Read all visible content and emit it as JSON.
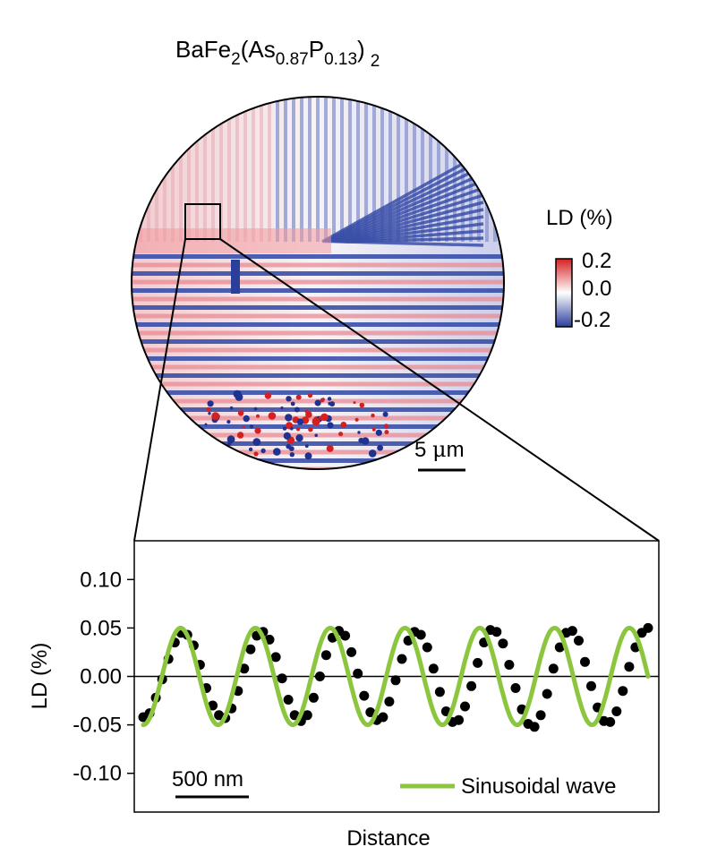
{
  "title": {
    "base": "BaFe",
    "sub1": "2",
    "open": "(As",
    "sub2": "0.87",
    "mid": "P",
    "sub3": "0.13",
    "close": ")",
    "sub4": "2"
  },
  "colorbar": {
    "label": "LD (%)",
    "ticks": [
      "0.2",
      "0.0",
      "-0.2"
    ],
    "colors": {
      "high": "#d62020",
      "mid": "#ffffff",
      "low": "#2a3f9c"
    }
  },
  "image_scalebar": {
    "prefix": "5 ",
    "mu": "μ",
    "unit": "m"
  },
  "chart_data": {
    "type": "scatter",
    "ylabel": "LD (%)",
    "xlabel": "Distance",
    "ylim": [
      -0.14,
      0.14
    ],
    "yticks": [
      "0.10",
      "0.05",
      "0.00",
      "-0.05",
      "-0.10"
    ],
    "ytick_values": [
      0.1,
      0.05,
      0.0,
      -0.05,
      -0.1
    ],
    "scalebar_label": "500 nm",
    "legend": "Sinusoidal wave",
    "legend_placement": "bottom-right",
    "fit": {
      "amplitude": 0.05,
      "periods": 6.75,
      "phase_at_start": -0.05
    },
    "series": [
      {
        "name": "",
        "style": "points",
        "color": "#000000",
        "x": [
          0.0,
          0.0125,
          0.025,
          0.0375,
          0.05,
          0.0625,
          0.075,
          0.0875,
          0.1,
          0.1125,
          0.125,
          0.1375,
          0.15,
          0.1625,
          0.175,
          0.1875,
          0.2,
          0.2125,
          0.225,
          0.2375,
          0.25,
          0.2625,
          0.275,
          0.2875,
          0.3,
          0.3125,
          0.325,
          0.3375,
          0.35,
          0.3625,
          0.375,
          0.3875,
          0.4,
          0.4125,
          0.425,
          0.4375,
          0.45,
          0.4625,
          0.475,
          0.4875,
          0.5,
          0.5125,
          0.525,
          0.5375,
          0.55,
          0.5625,
          0.575,
          0.5875,
          0.6,
          0.6125,
          0.625,
          0.6375,
          0.65,
          0.6625,
          0.675,
          0.6875,
          0.7,
          0.7125,
          0.725,
          0.7375,
          0.75,
          0.7625,
          0.775,
          0.7875,
          0.8,
          0.8125,
          0.825,
          0.8375,
          0.85,
          0.8625,
          0.875,
          0.8875,
          0.9,
          0.9125,
          0.925,
          0.9375,
          0.95,
          0.9625,
          0.975,
          0.9875,
          1.0
        ],
        "y": [
          -0.042,
          -0.038,
          -0.022,
          -0.003,
          0.018,
          0.035,
          0.045,
          0.043,
          0.032,
          0.012,
          -0.012,
          -0.03,
          -0.04,
          -0.043,
          -0.033,
          -0.015,
          0.008,
          0.028,
          0.042,
          0.046,
          0.038,
          0.02,
          -0.002,
          -0.024,
          -0.04,
          -0.046,
          -0.04,
          -0.022,
          0.0,
          0.022,
          0.04,
          0.047,
          0.042,
          0.025,
          0.003,
          -0.02,
          -0.037,
          -0.045,
          -0.042,
          -0.026,
          -0.004,
          0.018,
          0.037,
          0.046,
          0.043,
          0.03,
          0.008,
          -0.016,
          -0.036,
          -0.047,
          -0.045,
          -0.031,
          -0.01,
          0.014,
          0.035,
          0.048,
          0.046,
          0.034,
          0.012,
          -0.012,
          -0.034,
          -0.049,
          -0.052,
          -0.04,
          -0.018,
          0.008,
          0.03,
          0.045,
          0.047,
          0.037,
          0.015,
          -0.01,
          -0.032,
          -0.046,
          -0.047,
          -0.036,
          -0.015,
          0.01,
          0.03,
          0.045,
          0.05
        ]
      },
      {
        "name": "Sinusoidal wave",
        "style": "line",
        "color": "#8cc63f"
      }
    ]
  }
}
